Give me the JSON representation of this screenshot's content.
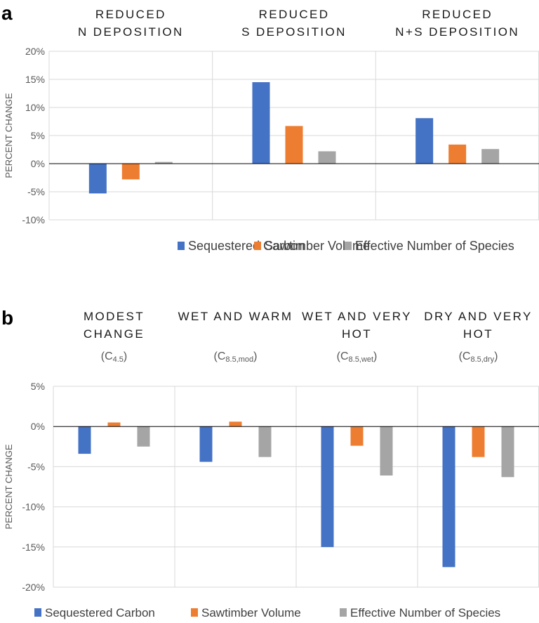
{
  "colors": {
    "series": [
      "#4472C4",
      "#ED7D31",
      "#A5A5A5"
    ],
    "grid": "#D9D9D9",
    "zero_line": "#000000",
    "text": "#404040"
  },
  "chart_data": [
    {
      "type": "bar",
      "panel_label": "a",
      "ylabel": "PERCENT CHANGE",
      "ylim": [
        -10,
        20
      ],
      "y_ticks": [
        20,
        15,
        10,
        5,
        0,
        -5,
        -10
      ],
      "y_tick_labels": [
        "20%",
        "15%",
        "10%",
        "5%",
        "0%",
        "-5%",
        "-10%"
      ],
      "categories": [
        {
          "lines": [
            "REDUCED",
            "N DEPOSITION"
          ]
        },
        {
          "lines": [
            "REDUCED",
            "S DEPOSITION"
          ]
        },
        {
          "lines": [
            "REDUCED",
            "N+S DEPOSITION"
          ]
        }
      ],
      "series": [
        {
          "name": "Sequestered Carbon",
          "values": [
            -5.3,
            14.5,
            8.1
          ]
        },
        {
          "name": "Sawtimber Volume",
          "values": [
            -2.8,
            6.7,
            3.4
          ]
        },
        {
          "name": "Effective Number of Species",
          "values": [
            0.3,
            2.2,
            2.6
          ]
        }
      ],
      "legend_position": "bottom"
    },
    {
      "type": "bar",
      "panel_label": "b",
      "ylabel": "PERCENT CHANGE",
      "ylim": [
        -20,
        5
      ],
      "y_ticks": [
        5,
        0,
        -5,
        -10,
        -15,
        -20
      ],
      "y_tick_labels": [
        "5%",
        "0%",
        "-5%",
        "-10%",
        "-15%",
        "-20%"
      ],
      "categories": [
        {
          "lines": [
            "MODEST",
            "CHANGE"
          ],
          "sub": "(C",
          "subscript": "4.5",
          "sub_end": ")"
        },
        {
          "lines": [
            "WET AND WARM"
          ],
          "sub": "(C",
          "subscript": "8.5,mod",
          "sub_end": ")"
        },
        {
          "lines": [
            "WET AND VERY",
            "HOT"
          ],
          "sub": "(C",
          "subscript": "8.5,wet",
          "sub_end": ")"
        },
        {
          "lines": [
            "DRY AND VERY",
            "HOT"
          ],
          "sub": "(C",
          "subscript": "8.5,dry",
          "sub_end": ")"
        }
      ],
      "series": [
        {
          "name": "Sequestered Carbon",
          "values": [
            -3.4,
            -4.4,
            -15.0,
            -17.5
          ]
        },
        {
          "name": "Sawtimber Volume",
          "values": [
            0.5,
            0.6,
            -2.4,
            -3.8
          ]
        },
        {
          "name": "Effective Number of Species",
          "values": [
            -2.5,
            -3.8,
            -6.1,
            -6.3
          ]
        }
      ],
      "legend_position": "bottom"
    }
  ]
}
